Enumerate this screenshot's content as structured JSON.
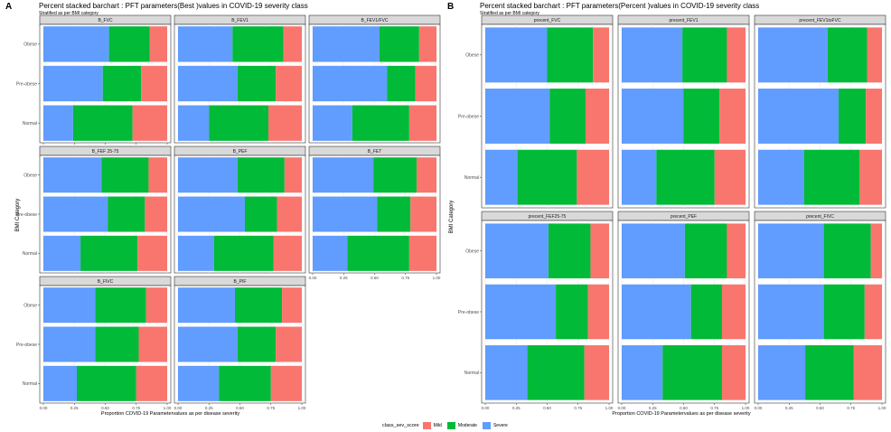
{
  "left": {
    "letter": "A",
    "title": "Percent stacked barchart : PFT parameters(Best )values in COVID-19 severity class",
    "subtitle": "Stratified as per BMI category",
    "xlabel": "Proportion COVID-19 Parametervalues as per disease severity",
    "ylabel": "BMI Category"
  },
  "right": {
    "letter": "B",
    "title": "Percent stacked barchart : PFT parameters(Percent )values in COVID-19 severity class",
    "subtitle": "Stratified as per BMI category",
    "xlabel": "Proportion COVID-19 Parametervalues as per disease severity",
    "ylabel": "BMI Category"
  },
  "legend": {
    "title": "class_sev_score",
    "items": [
      {
        "label": "Mild",
        "color": "#F8766D"
      },
      {
        "label": "Moderate",
        "color": "#00BA38"
      },
      {
        "label": "Severe",
        "color": "#619CFF"
      }
    ]
  },
  "chart_data": [
    {
      "type": "bar",
      "orientation": "horizontal",
      "stacked": "percent",
      "categories": [
        "Obese",
        "Pre-obese",
        "Normal"
      ],
      "stack_order": [
        "Severe",
        "Moderate",
        "Mild"
      ],
      "xticks": [
        "0.00",
        "0.25",
        "0.50",
        "0.75",
        "1.00"
      ],
      "xlim": [
        0,
        1
      ],
      "facets": [
        {
          "name": "B_FVC",
          "severe": [
            0.53,
            0.48,
            0.24
          ],
          "moderate": [
            0.33,
            0.31,
            0.48
          ]
        },
        {
          "name": "B_FEV1",
          "severe": [
            0.44,
            0.48,
            0.25
          ],
          "moderate": [
            0.41,
            0.31,
            0.48
          ]
        },
        {
          "name": "B_FEV1/FVC",
          "severe": [
            0.54,
            0.6,
            0.32
          ],
          "moderate": [
            0.32,
            0.23,
            0.46
          ]
        },
        {
          "name": "B_FEF 25-75",
          "severe": [
            0.47,
            0.52,
            0.3
          ],
          "moderate": [
            0.38,
            0.3,
            0.46
          ]
        },
        {
          "name": "B_PEF",
          "severe": [
            0.48,
            0.54,
            0.29
          ],
          "moderate": [
            0.38,
            0.26,
            0.48
          ]
        },
        {
          "name": "B_FET",
          "severe": [
            0.49,
            0.52,
            0.28
          ],
          "moderate": [
            0.35,
            0.27,
            0.5
          ]
        },
        {
          "name": "B_FIVC",
          "severe": [
            0.42,
            0.42,
            0.27
          ],
          "moderate": [
            0.41,
            0.35,
            0.48
          ]
        },
        {
          "name": "B_PIF",
          "severe": [
            0.46,
            0.48,
            0.33
          ],
          "moderate": [
            0.38,
            0.31,
            0.42
          ]
        }
      ]
    },
    {
      "type": "bar",
      "orientation": "horizontal",
      "stacked": "percent",
      "categories": [
        "Obese",
        "Pre-obese",
        "Normal"
      ],
      "stack_order": [
        "Severe",
        "Moderate",
        "Mild"
      ],
      "xticks": [
        "0.00",
        "0.25",
        "0.50",
        "0.75",
        "1.00"
      ],
      "xlim": [
        0,
        1
      ],
      "facets": [
        {
          "name": "precent_FVC",
          "severe": [
            0.5,
            0.52,
            0.26
          ],
          "moderate": [
            0.37,
            0.29,
            0.48
          ]
        },
        {
          "name": "precent_FEV1",
          "severe": [
            0.49,
            0.5,
            0.28
          ],
          "moderate": [
            0.36,
            0.29,
            0.47
          ]
        },
        {
          "name": "precent_FEV1toFVC",
          "severe": [
            0.56,
            0.65,
            0.37
          ],
          "moderate": [
            0.32,
            0.22,
            0.45
          ]
        },
        {
          "name": "precent_FEF25-75",
          "severe": [
            0.51,
            0.57,
            0.34
          ],
          "moderate": [
            0.34,
            0.26,
            0.46
          ]
        },
        {
          "name": "precent_PEF",
          "severe": [
            0.51,
            0.56,
            0.33
          ],
          "moderate": [
            0.34,
            0.25,
            0.48
          ]
        },
        {
          "name": "precent_FIVC",
          "severe": [
            0.53,
            0.53,
            0.38
          ],
          "moderate": [
            0.38,
            0.33,
            0.39
          ]
        }
      ]
    }
  ]
}
